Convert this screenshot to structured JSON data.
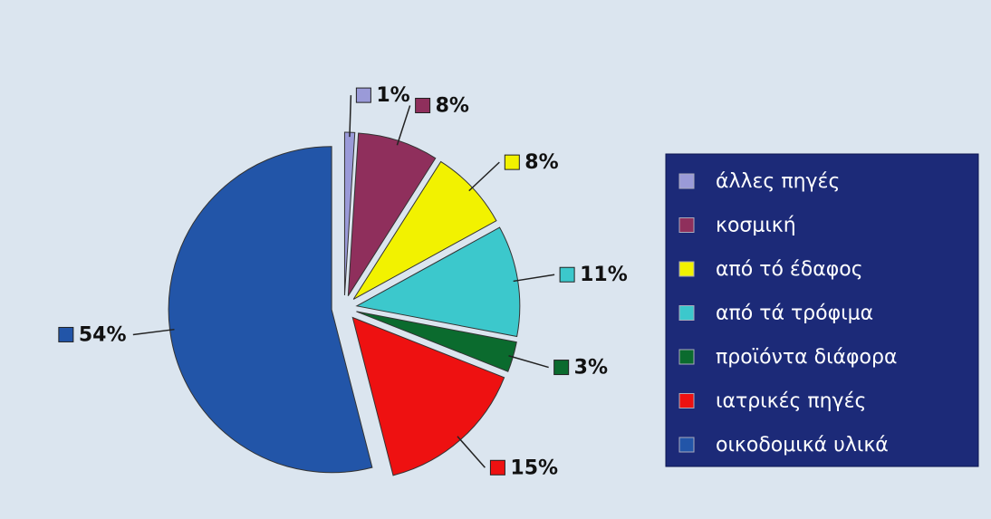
{
  "chart_data": {
    "type": "pie",
    "categories": [
      "άλλες πηγές",
      "κοσμική",
      "από τό έδαφος",
      "από τά τρόφιμα",
      "προϊόντα διάφορα",
      "ιατρικές πηγές",
      "οικοδομικά υλικά"
    ],
    "values": [
      1,
      8,
      8,
      11,
      3,
      15,
      54
    ],
    "value_labels": [
      "1%",
      "8%",
      "8%",
      "11%",
      "3%",
      "15%",
      "54%"
    ],
    "colors": [
      "#9a9ad8",
      "#8f2f5c",
      "#f2f200",
      "#3cc8cc",
      "#0b6b2e",
      "#ee1111",
      "#2255a8"
    ],
    "legend": "right"
  }
}
